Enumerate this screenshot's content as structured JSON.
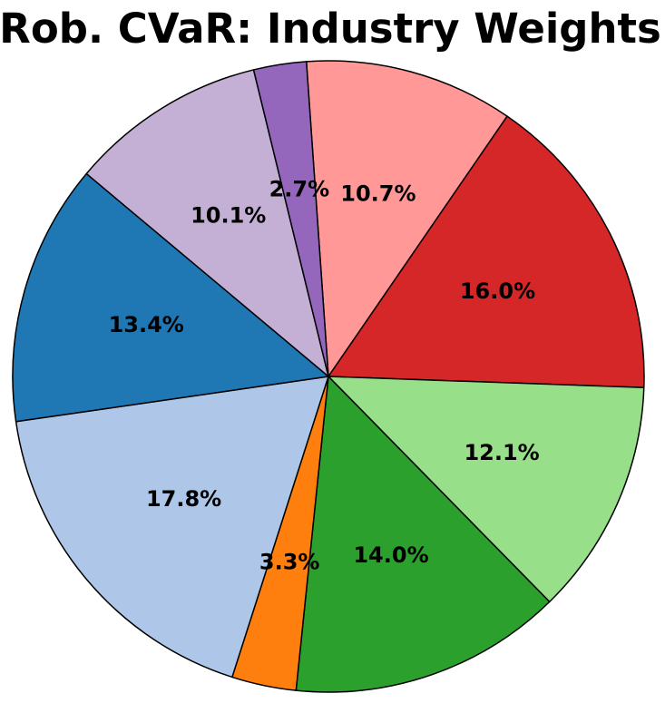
{
  "title": "Rob. CVaR: Industry Weights",
  "chart_data": {
    "type": "pie",
    "title": "Rob. CVaR: Industry Weights",
    "title_color": "#000000",
    "background_color": "#ffffff",
    "legend": "none",
    "start_angle_deg": 94,
    "clockwise": true,
    "label_distance": 0.6,
    "edge_color": "#000000",
    "edge_width": 1.5,
    "label_color": "#000000",
    "slices": [
      {
        "label": "10.7%",
        "value": 10.7,
        "color": "#ff9896"
      },
      {
        "label": "16.0%",
        "value": 16.0,
        "color": "#d62728"
      },
      {
        "label": "12.1%",
        "value": 12.1,
        "color": "#98df8a"
      },
      {
        "label": "14.0%",
        "value": 14.0,
        "color": "#2ca02c"
      },
      {
        "label": "3.3%",
        "value": 3.3,
        "color": "#ff7f0e"
      },
      {
        "label": "17.8%",
        "value": 17.8,
        "color": "#aec7e8"
      },
      {
        "label": "13.4%",
        "value": 13.4,
        "color": "#1f77b4"
      },
      {
        "label": "10.1%",
        "value": 10.1,
        "color": "#c5b0d5"
      },
      {
        "label": "2.7%",
        "value": 2.7,
        "color": "#9467bd"
      }
    ]
  }
}
